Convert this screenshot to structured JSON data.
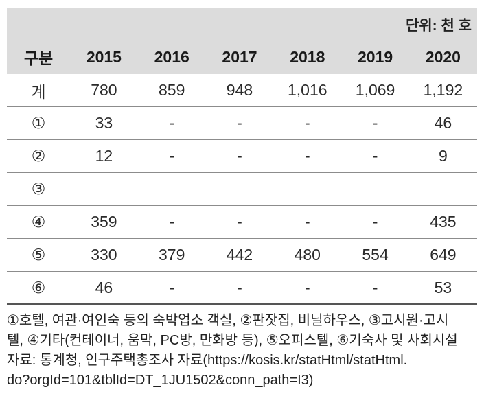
{
  "table": {
    "unit": "단위: 천 호",
    "headers": [
      "구분",
      "2015",
      "2016",
      "2017",
      "2018",
      "2019",
      "2020"
    ],
    "rows": [
      [
        "계",
        "780",
        "859",
        "948",
        "1,016",
        "1,069",
        "1,192"
      ],
      [
        "①",
        "33",
        "-",
        "-",
        "-",
        "-",
        "46"
      ],
      [
        "②",
        "12",
        "-",
        "-",
        "-",
        "-",
        "9"
      ],
      [
        "③",
        "",
        "",
        "",
        "",
        "",
        ""
      ],
      [
        "④",
        "359",
        "-",
        "-",
        "-",
        "-",
        "435"
      ],
      [
        "⑤",
        "330",
        "379",
        "442",
        "480",
        "554",
        "649"
      ],
      [
        "⑥",
        "46",
        "-",
        "-",
        "-",
        "-",
        "53"
      ]
    ]
  },
  "footnote": {
    "line1": "①호텔, 여관·여인숙 등의 숙박업소 객실, ②판잣집, 비닐하우스, ③고시원·고시",
    "line2": "텔, ④기타(컨테이너, 움막, PC방, 만화방 등), ⑤오피스텔, ⑥기숙사 및 사회시설",
    "line3": "자료: 통계청, 인구주택총조사 자료(https://kosis.kr/statHtml/statHtml.",
    "line4": "do?orgId=101&tblId=DT_1JU1502&conn_path=I3)"
  }
}
